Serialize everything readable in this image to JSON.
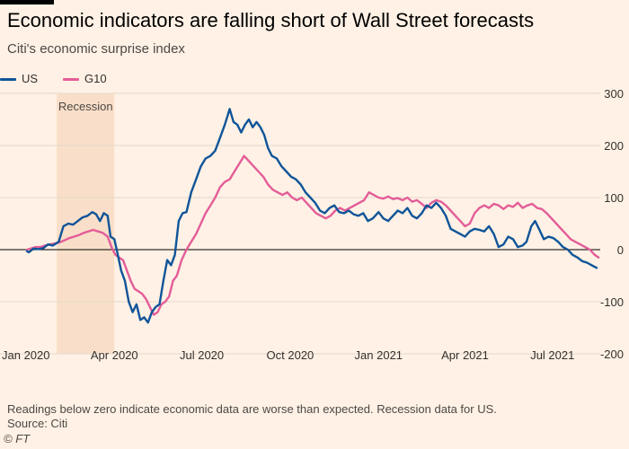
{
  "header": {
    "title": "Economic indicators are falling short of Wall Street forecasts",
    "subtitle": "Citi's economic surprise index"
  },
  "footer": {
    "note": "Readings below zero indicate economic data are worse than expected. Recession data for US.",
    "source": "Source: Citi",
    "copyright": "© FT"
  },
  "colors": {
    "background": "#fff1e5",
    "us": "#0f5499",
    "g10": "#e35d98",
    "recession": "#f9dfc9",
    "grid": "#e3d8cc",
    "zero_line": "#000000"
  },
  "chart_data": {
    "type": "line",
    "xlabel": "",
    "ylabel": "",
    "xlim": [
      "2020-01-01",
      "2021-08-31"
    ],
    "ylim": [
      -200,
      300
    ],
    "y_ticks": [
      300,
      200,
      100,
      0,
      -100,
      -200
    ],
    "x_ticks": [
      {
        "date": "2020-01-01",
        "label": "Jan 2020"
      },
      {
        "date": "2020-04-01",
        "label": "Apr 2020"
      },
      {
        "date": "2020-07-01",
        "label": "Jul 2020"
      },
      {
        "date": "2020-10-01",
        "label": "Oct 2020"
      },
      {
        "date": "2021-01-01",
        "label": "Jan 2021"
      },
      {
        "date": "2021-04-01",
        "label": "Apr 2021"
      },
      {
        "date": "2021-07-01",
        "label": "Jul 2021"
      }
    ],
    "grid": true,
    "legend_position": "top-left",
    "annotations": [
      {
        "type": "shaded-region",
        "label": "Recession",
        "x_start": "2020-02-01",
        "x_end": "2020-04-01"
      }
    ],
    "series": [
      {
        "name": "US",
        "points": [
          [
            "2020-01-01",
            -3
          ],
          [
            "2020-01-03",
            -5
          ],
          [
            "2020-01-08",
            2
          ],
          [
            "2020-01-13",
            1
          ],
          [
            "2020-01-18",
            3
          ],
          [
            "2020-01-23",
            10
          ],
          [
            "2020-01-28",
            8
          ],
          [
            "2020-02-03",
            15
          ],
          [
            "2020-02-08",
            45
          ],
          [
            "2020-02-13",
            50
          ],
          [
            "2020-02-18",
            48
          ],
          [
            "2020-02-23",
            55
          ],
          [
            "2020-02-28",
            62
          ],
          [
            "2020-03-04",
            65
          ],
          [
            "2020-03-09",
            72
          ],
          [
            "2020-03-13",
            68
          ],
          [
            "2020-03-17",
            55
          ],
          [
            "2020-03-21",
            70
          ],
          [
            "2020-03-25",
            65
          ],
          [
            "2020-03-28",
            25
          ],
          [
            "2020-04-01",
            20
          ],
          [
            "2020-04-04",
            -5
          ],
          [
            "2020-04-08",
            -40
          ],
          [
            "2020-04-12",
            -60
          ],
          [
            "2020-04-16",
            -100
          ],
          [
            "2020-04-20",
            -120
          ],
          [
            "2020-04-24",
            -105
          ],
          [
            "2020-04-28",
            -135
          ],
          [
            "2020-05-02",
            -130
          ],
          [
            "2020-05-06",
            -140
          ],
          [
            "2020-05-10",
            -120
          ],
          [
            "2020-05-14",
            -110
          ],
          [
            "2020-05-18",
            -105
          ],
          [
            "2020-05-22",
            -60
          ],
          [
            "2020-05-26",
            -20
          ],
          [
            "2020-05-30",
            -30
          ],
          [
            "2020-06-03",
            -10
          ],
          [
            "2020-06-07",
            55
          ],
          [
            "2020-06-11",
            70
          ],
          [
            "2020-06-15",
            72
          ],
          [
            "2020-06-20",
            110
          ],
          [
            "2020-06-25",
            135
          ],
          [
            "2020-06-30",
            160
          ],
          [
            "2020-07-05",
            175
          ],
          [
            "2020-07-10",
            180
          ],
          [
            "2020-07-15",
            190
          ],
          [
            "2020-07-20",
            215
          ],
          [
            "2020-07-25",
            240
          ],
          [
            "2020-07-30",
            270
          ],
          [
            "2020-08-03",
            245
          ],
          [
            "2020-08-07",
            240
          ],
          [
            "2020-08-11",
            225
          ],
          [
            "2020-08-15",
            240
          ],
          [
            "2020-08-19",
            250
          ],
          [
            "2020-08-23",
            235
          ],
          [
            "2020-08-27",
            245
          ],
          [
            "2020-08-31",
            235
          ],
          [
            "2020-09-04",
            220
          ],
          [
            "2020-09-08",
            195
          ],
          [
            "2020-09-12",
            180
          ],
          [
            "2020-09-17",
            175
          ],
          [
            "2020-09-22",
            160
          ],
          [
            "2020-09-27",
            150
          ],
          [
            "2020-10-02",
            140
          ],
          [
            "2020-10-07",
            135
          ],
          [
            "2020-10-12",
            125
          ],
          [
            "2020-10-17",
            110
          ],
          [
            "2020-10-22",
            100
          ],
          [
            "2020-10-27",
            90
          ],
          [
            "2020-11-01",
            75
          ],
          [
            "2020-11-06",
            70
          ],
          [
            "2020-11-11",
            80
          ],
          [
            "2020-11-16",
            85
          ],
          [
            "2020-11-21",
            72
          ],
          [
            "2020-11-26",
            70
          ],
          [
            "2020-12-01",
            75
          ],
          [
            "2020-12-06",
            68
          ],
          [
            "2020-12-11",
            65
          ],
          [
            "2020-12-16",
            70
          ],
          [
            "2020-12-21",
            55
          ],
          [
            "2020-12-26",
            60
          ],
          [
            "2021-01-01",
            72
          ],
          [
            "2021-01-06",
            60
          ],
          [
            "2021-01-11",
            55
          ],
          [
            "2021-01-16",
            65
          ],
          [
            "2021-01-21",
            75
          ],
          [
            "2021-01-26",
            70
          ],
          [
            "2021-01-31",
            80
          ],
          [
            "2021-02-05",
            65
          ],
          [
            "2021-02-10",
            60
          ],
          [
            "2021-02-15",
            70
          ],
          [
            "2021-02-20",
            85
          ],
          [
            "2021-02-25",
            80
          ],
          [
            "2021-03-02",
            90
          ],
          [
            "2021-03-07",
            80
          ],
          [
            "2021-03-12",
            65
          ],
          [
            "2021-03-17",
            40
          ],
          [
            "2021-03-22",
            35
          ],
          [
            "2021-03-27",
            30
          ],
          [
            "2021-04-01",
            25
          ],
          [
            "2021-04-06",
            35
          ],
          [
            "2021-04-11",
            40
          ],
          [
            "2021-04-16",
            38
          ],
          [
            "2021-04-21",
            35
          ],
          [
            "2021-04-26",
            45
          ],
          [
            "2021-05-01",
            30
          ],
          [
            "2021-05-06",
            5
          ],
          [
            "2021-05-11",
            10
          ],
          [
            "2021-05-16",
            25
          ],
          [
            "2021-05-21",
            20
          ],
          [
            "2021-05-26",
            5
          ],
          [
            "2021-05-31",
            8
          ],
          [
            "2021-06-04",
            15
          ],
          [
            "2021-06-09",
            45
          ],
          [
            "2021-06-13",
            55
          ],
          [
            "2021-06-17",
            40
          ],
          [
            "2021-06-22",
            20
          ],
          [
            "2021-06-27",
            25
          ],
          [
            "2021-07-02",
            22
          ],
          [
            "2021-07-07",
            15
          ],
          [
            "2021-07-12",
            5
          ],
          [
            "2021-07-17",
            0
          ],
          [
            "2021-07-22",
            -10
          ],
          [
            "2021-07-27",
            -15
          ],
          [
            "2021-08-01",
            -22
          ],
          [
            "2021-08-06",
            -25
          ],
          [
            "2021-08-11",
            -30
          ],
          [
            "2021-08-16",
            -35
          ]
        ]
      },
      {
        "name": "G10",
        "points": [
          [
            "2020-01-01",
            0
          ],
          [
            "2020-01-05",
            2
          ],
          [
            "2020-01-10",
            5
          ],
          [
            "2020-01-15",
            5
          ],
          [
            "2020-01-20",
            8
          ],
          [
            "2020-01-25",
            10
          ],
          [
            "2020-01-30",
            12
          ],
          [
            "2020-02-04",
            14
          ],
          [
            "2020-02-09",
            18
          ],
          [
            "2020-02-14",
            22
          ],
          [
            "2020-02-19",
            25
          ],
          [
            "2020-02-24",
            28
          ],
          [
            "2020-02-29",
            32
          ],
          [
            "2020-03-05",
            35
          ],
          [
            "2020-03-10",
            38
          ],
          [
            "2020-03-15",
            35
          ],
          [
            "2020-03-20",
            32
          ],
          [
            "2020-03-25",
            25
          ],
          [
            "2020-03-29",
            5
          ],
          [
            "2020-04-02",
            -10
          ],
          [
            "2020-04-06",
            -15
          ],
          [
            "2020-04-10",
            -20
          ],
          [
            "2020-04-14",
            -40
          ],
          [
            "2020-04-18",
            -60
          ],
          [
            "2020-04-22",
            -75
          ],
          [
            "2020-04-26",
            -80
          ],
          [
            "2020-04-30",
            -85
          ],
          [
            "2020-05-04",
            -95
          ],
          [
            "2020-05-08",
            -110
          ],
          [
            "2020-05-12",
            -125
          ],
          [
            "2020-05-16",
            -120
          ],
          [
            "2020-05-20",
            -105
          ],
          [
            "2020-05-24",
            -100
          ],
          [
            "2020-05-28",
            -90
          ],
          [
            "2020-06-01",
            -60
          ],
          [
            "2020-06-05",
            -50
          ],
          [
            "2020-06-10",
            -20
          ],
          [
            "2020-06-15",
            0
          ],
          [
            "2020-06-20",
            15
          ],
          [
            "2020-06-25",
            30
          ],
          [
            "2020-06-30",
            50
          ],
          [
            "2020-07-05",
            70
          ],
          [
            "2020-07-10",
            85
          ],
          [
            "2020-07-15",
            100
          ],
          [
            "2020-07-20",
            120
          ],
          [
            "2020-07-25",
            130
          ],
          [
            "2020-07-30",
            135
          ],
          [
            "2020-08-04",
            150
          ],
          [
            "2020-08-09",
            165
          ],
          [
            "2020-08-14",
            180
          ],
          [
            "2020-08-19",
            170
          ],
          [
            "2020-08-24",
            160
          ],
          [
            "2020-08-29",
            150
          ],
          [
            "2020-09-03",
            140
          ],
          [
            "2020-09-08",
            125
          ],
          [
            "2020-09-13",
            115
          ],
          [
            "2020-09-18",
            110
          ],
          [
            "2020-09-23",
            105
          ],
          [
            "2020-09-28",
            110
          ],
          [
            "2020-10-03",
            100
          ],
          [
            "2020-10-08",
            95
          ],
          [
            "2020-10-13",
            100
          ],
          [
            "2020-10-18",
            90
          ],
          [
            "2020-10-23",
            80
          ],
          [
            "2020-10-28",
            70
          ],
          [
            "2020-11-02",
            65
          ],
          [
            "2020-11-07",
            60
          ],
          [
            "2020-11-12",
            65
          ],
          [
            "2020-11-17",
            75
          ],
          [
            "2020-11-22",
            80
          ],
          [
            "2020-11-27",
            75
          ],
          [
            "2020-12-02",
            80
          ],
          [
            "2020-12-07",
            85
          ],
          [
            "2020-12-12",
            90
          ],
          [
            "2020-12-17",
            95
          ],
          [
            "2020-12-22",
            110
          ],
          [
            "2020-12-27",
            105
          ],
          [
            "2021-01-01",
            100
          ],
          [
            "2021-01-06",
            98
          ],
          [
            "2021-01-11",
            102
          ],
          [
            "2021-01-16",
            97
          ],
          [
            "2021-01-21",
            99
          ],
          [
            "2021-01-26",
            95
          ],
          [
            "2021-01-31",
            100
          ],
          [
            "2021-02-05",
            92
          ],
          [
            "2021-02-10",
            95
          ],
          [
            "2021-02-15",
            88
          ],
          [
            "2021-02-20",
            80
          ],
          [
            "2021-02-25",
            90
          ],
          [
            "2021-03-02",
            95
          ],
          [
            "2021-03-07",
            92
          ],
          [
            "2021-03-12",
            85
          ],
          [
            "2021-03-17",
            75
          ],
          [
            "2021-03-22",
            65
          ],
          [
            "2021-03-27",
            55
          ],
          [
            "2021-04-01",
            45
          ],
          [
            "2021-04-06",
            50
          ],
          [
            "2021-04-11",
            70
          ],
          [
            "2021-04-16",
            80
          ],
          [
            "2021-04-21",
            85
          ],
          [
            "2021-04-26",
            80
          ],
          [
            "2021-05-01",
            88
          ],
          [
            "2021-05-06",
            85
          ],
          [
            "2021-05-11",
            78
          ],
          [
            "2021-05-16",
            85
          ],
          [
            "2021-05-21",
            82
          ],
          [
            "2021-05-26",
            90
          ],
          [
            "2021-05-31",
            80
          ],
          [
            "2021-06-05",
            85
          ],
          [
            "2021-06-10",
            88
          ],
          [
            "2021-06-15",
            80
          ],
          [
            "2021-06-20",
            78
          ],
          [
            "2021-06-25",
            70
          ],
          [
            "2021-06-30",
            60
          ],
          [
            "2021-07-05",
            50
          ],
          [
            "2021-07-10",
            40
          ],
          [
            "2021-07-15",
            30
          ],
          [
            "2021-07-20",
            20
          ],
          [
            "2021-07-25",
            15
          ],
          [
            "2021-07-30",
            10
          ],
          [
            "2021-08-04",
            5
          ],
          [
            "2021-08-09",
            0
          ],
          [
            "2021-08-14",
            -10
          ],
          [
            "2021-08-18",
            -15
          ]
        ]
      }
    ]
  }
}
